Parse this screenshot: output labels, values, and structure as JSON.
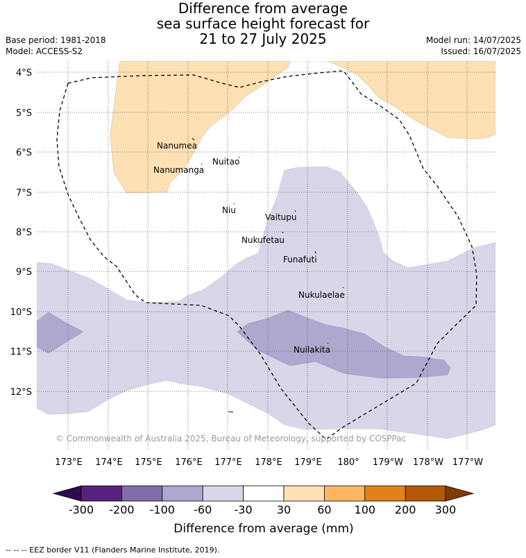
{
  "title": {
    "line1": "Difference from average",
    "line2": "sea surface height forecast for",
    "line3": "21 to 27 July 2025"
  },
  "meta": {
    "base_period": "Base period: 1981-2018",
    "model": "Model: ACCESS-S2",
    "model_run": "Model run: 14/07/2025",
    "issued": "Issued: 16/07/2025"
  },
  "map": {
    "lat_labels": [
      "4°S",
      "5°S",
      "6°S",
      "7°S",
      "8°S",
      "9°S",
      "10°S",
      "11°S",
      "12°S"
    ],
    "lon_labels": [
      "173°E",
      "174°E",
      "175°E",
      "176°E",
      "177°E",
      "178°E",
      "179°E",
      "180°",
      "179°W",
      "178°W",
      "177°W"
    ],
    "places": [
      "Nanumea",
      "Nanumanga",
      "Nuitao",
      "Niu",
      "Vaitupu",
      "Nukufetau",
      "Funafuti",
      "Nukulaelae",
      "Nuilakita"
    ],
    "copyright": "© Commonwealth of Australia 2025, Bureau of Meteorology, supported by COSPPac"
  },
  "colorbar": {
    "ticks": [
      "-300",
      "-200",
      "-100",
      "-60",
      "-30",
      "30",
      "60",
      "100",
      "200",
      "300"
    ],
    "colors": [
      "#2e0b4f",
      "#57227f",
      "#7e6fa8",
      "#aea7ce",
      "#d7d7e9",
      "#ffffff",
      "#fde0b3",
      "#fdb562",
      "#e2811c",
      "#b35806",
      "#7f3b08"
    ],
    "label": "Difference from average (mm)"
  },
  "footer": {
    "eez_note": "--  --  -- EEZ border V11 (Flanders Marine Institute, 2019)."
  }
}
